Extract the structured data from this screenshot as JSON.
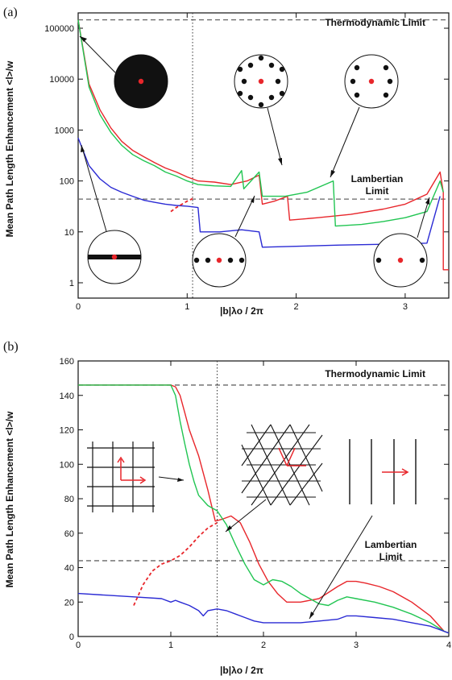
{
  "colors": {
    "red": "#e8262b",
    "green": "#21c552",
    "blue": "#2a2ad4",
    "black": "#111111",
    "ref": "#666666"
  },
  "chart_data": [
    {
      "panel_label": "(a)",
      "type": "line",
      "ylabel": "Mean Path Length Enhancement <l>/w",
      "xlabel": "|b|λo / 2π",
      "yscale": "log",
      "xlim": [
        0,
        3.4
      ],
      "ylim": [
        0.5,
        200000
      ],
      "xticks": [
        "0",
        "1",
        "2",
        "3"
      ],
      "yticks": [
        "1",
        "10",
        "100",
        "1000",
        "10000",
        "100000"
      ],
      "annotations": {
        "thermo_label": "Thermodynamic Limit",
        "lamb_line1": "Lambertian",
        "lamb_line2": "Limit"
      },
      "reference_lines": [
        {
          "kind": "thermo",
          "y": 146000
        },
        {
          "kind": "lambertian",
          "y": 44
        }
      ],
      "vertical_line_x": 1.05,
      "insets": [
        "disk",
        "hexagonal-dots",
        "square-dots",
        "line-grating",
        "chain-of-dots-1",
        "chain-of-dots-2"
      ],
      "series": [
        {
          "color": "red",
          "x": [
            0,
            0.1,
            0.2,
            0.3,
            0.4,
            0.5,
            0.6,
            0.7,
            0.8,
            0.9,
            1.0,
            1.1,
            1.25,
            1.4,
            1.55,
            1.66,
            1.69,
            1.8,
            1.92,
            1.94,
            2.2,
            2.5,
            2.8,
            3.0,
            3.2,
            3.32,
            3.35,
            3.35,
            3.4
          ],
          "y": [
            146000,
            8000,
            2500,
            1100,
            600,
            400,
            300,
            230,
            180,
            150,
            120,
            100,
            95,
            85,
            100,
            130,
            35,
            40,
            50,
            17,
            19,
            22,
            28,
            35,
            55,
            150,
            60,
            1.8,
            1.8
          ]
        },
        {
          "color": "green",
          "x": [
            0,
            0.1,
            0.2,
            0.3,
            0.4,
            0.5,
            0.6,
            0.7,
            0.8,
            0.9,
            1.0,
            1.1,
            1.25,
            1.4,
            1.5,
            1.52,
            1.66,
            1.69,
            1.9,
            2.1,
            2.34,
            2.36,
            2.6,
            2.8,
            3.0,
            3.2,
            3.32,
            3.35
          ],
          "y": [
            146000,
            7000,
            2000,
            900,
            500,
            330,
            250,
            200,
            150,
            125,
            100,
            85,
            80,
            78,
            160,
            70,
            150,
            50,
            50,
            60,
            100,
            13,
            14,
            16,
            19,
            25,
            100,
            60
          ]
        },
        {
          "color": "blue",
          "x": [
            0,
            0.1,
            0.2,
            0.3,
            0.4,
            0.5,
            0.6,
            0.7,
            0.8,
            0.9,
            1.0,
            1.1,
            1.12,
            1.3,
            1.5,
            1.66,
            1.69,
            2.0,
            2.4,
            2.8,
            3.2,
            3.32
          ],
          "y": [
            700,
            200,
            110,
            75,
            60,
            50,
            42,
            38,
            35,
            33,
            32,
            30,
            10,
            10,
            11,
            10,
            5,
            5.2,
            5.5,
            5.7,
            6,
            50
          ]
        },
        {
          "color": "red",
          "dashed": true,
          "x": [
            0.85,
            0.9,
            1.0,
            1.05
          ],
          "y": [
            25,
            30,
            40,
            45
          ]
        }
      ]
    },
    {
      "panel_label": "(b)",
      "type": "line",
      "ylabel": "Mean Path Length Enhancement <l>/w",
      "xlabel": "|b|λo / 2π",
      "xlim": [
        0,
        4
      ],
      "ylim": [
        0,
        160
      ],
      "xticks": [
        "0",
        "1",
        "2",
        "3",
        "4"
      ],
      "yticks": [
        "0",
        "20",
        "40",
        "60",
        "80",
        "100",
        "120",
        "140",
        "160"
      ],
      "annotations": {
        "thermo_label": "Thermodynamic Limit",
        "lamb_line1": "Lambertian",
        "lamb_line2": "Limit"
      },
      "reference_lines": [
        {
          "kind": "thermo",
          "y": 146
        },
        {
          "kind": "lambertian",
          "y": 44
        }
      ],
      "vertical_line_x": 1.5,
      "insets": [
        "square-lattice",
        "triangular-lattice",
        "line-grating"
      ],
      "series": [
        {
          "color": "red",
          "x": [
            0,
            0.5,
            0.9,
            1.0,
            1.05,
            1.1,
            1.15,
            1.2,
            1.3,
            1.4,
            1.48,
            1.55,
            1.65,
            1.75,
            1.85,
            1.95,
            2.05,
            2.15,
            2.25,
            2.4,
            2.6,
            2.8,
            2.9,
            3.0,
            3.1,
            3.25,
            3.4,
            3.6,
            3.8,
            3.95,
            4.0
          ],
          "y": [
            146,
            146,
            146,
            146,
            145,
            140,
            130,
            120,
            105,
            85,
            67,
            68,
            70,
            66,
            55,
            42,
            32,
            25,
            20,
            20,
            22,
            29,
            32,
            32,
            31,
            29,
            26,
            20,
            12,
            3,
            2
          ]
        },
        {
          "color": "green",
          "x": [
            0,
            0.5,
            0.9,
            1.0,
            1.05,
            1.1,
            1.15,
            1.2,
            1.25,
            1.3,
            1.4,
            1.5,
            1.6,
            1.7,
            1.8,
            1.9,
            2.0,
            2.1,
            2.2,
            2.3,
            2.4,
            2.5,
            2.6,
            2.7,
            2.8,
            2.9,
            3.0,
            3.2,
            3.4,
            3.6,
            3.8,
            3.95,
            4.0
          ],
          "y": [
            146,
            146,
            146,
            146,
            140,
            125,
            112,
            100,
            90,
            82,
            76,
            73,
            65,
            53,
            42,
            33,
            30,
            33,
            32,
            29,
            25,
            22,
            19,
            18,
            21,
            23,
            22,
            20,
            17,
            13,
            8,
            3,
            2
          ]
        },
        {
          "color": "blue",
          "x": [
            0,
            0.3,
            0.6,
            0.9,
            1.0,
            1.05,
            1.1,
            1.2,
            1.3,
            1.35,
            1.4,
            1.5,
            1.6,
            1.7,
            1.8,
            1.9,
            2.0,
            2.2,
            2.4,
            2.6,
            2.8,
            2.9,
            3.0,
            3.2,
            3.4,
            3.6,
            3.8,
            3.95,
            4.0
          ],
          "y": [
            25,
            24,
            23,
            22,
            20,
            21,
            20,
            18,
            15,
            12,
            15,
            16,
            15,
            13,
            11,
            9,
            8,
            8,
            8,
            9,
            10,
            12,
            12,
            11,
            10,
            8,
            6,
            3,
            2
          ]
        },
        {
          "color": "red",
          "dashed": true,
          "x": [
            0.6,
            0.7,
            0.8,
            0.9,
            1.0,
            1.1,
            1.2,
            1.3,
            1.4,
            1.5
          ],
          "y": [
            18,
            30,
            38,
            42,
            44,
            47,
            52,
            58,
            63,
            66
          ]
        }
      ]
    }
  ]
}
